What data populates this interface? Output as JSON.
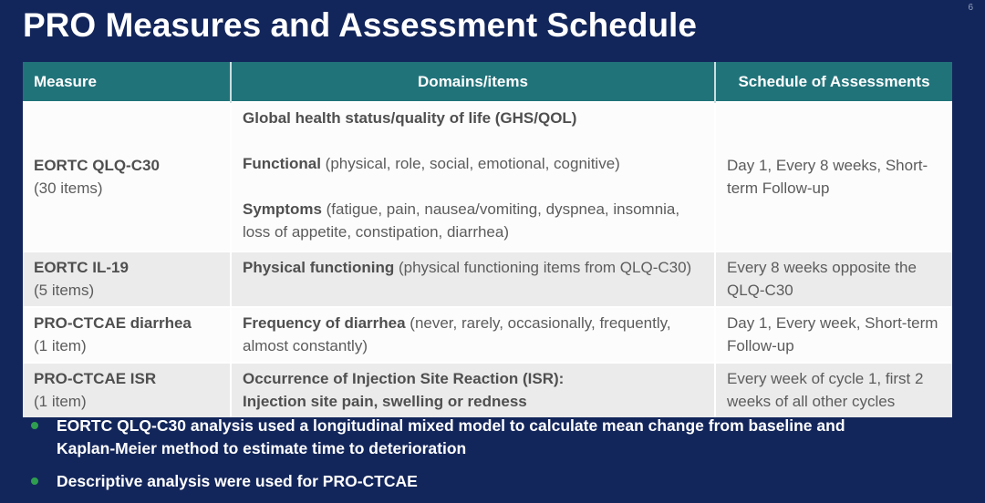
{
  "page_number": "6",
  "title": "PRO Measures and Assessment Schedule",
  "colors": {
    "background_navy": "#13265B",
    "header_teal": "#21737A",
    "row_white": "#FCFCFC",
    "row_gray": "#EBEBEB",
    "body_text_gray": "#5C5C5C",
    "bullet_green": "#2F9E4F",
    "title_white": "#FFFFFF"
  },
  "table": {
    "headers": {
      "measure": "Measure",
      "domains": "Domains/items",
      "schedule": "Schedule of Assessments"
    },
    "rows": [
      {
        "name": "EORTC QLQ-C30",
        "items": "(30 items)",
        "domains": [
          {
            "lead": "Global health status/quality of life (GHS/QOL)",
            "rest": ""
          },
          {
            "lead": "Functional",
            "rest": " (physical, role, social, emotional, cognitive)"
          },
          {
            "lead": "Symptoms",
            "rest": " (fatigue, pain, nausea/vomiting, dyspnea, insomnia, loss of appetite, constipation, diarrhea)"
          }
        ],
        "schedule": "Day 1, Every 8 weeks, Short-term Follow-up"
      },
      {
        "name": "EORTC IL-19",
        "items": "(5 items)",
        "domains": [
          {
            "lead": "Physical functioning",
            "rest": " (physical functioning items from QLQ-C30)"
          }
        ],
        "schedule": "Every 8 weeks opposite the QLQ-C30"
      },
      {
        "name": "PRO-CTCAE diarrhea",
        "items": "(1 item)",
        "domains": [
          {
            "lead": "Frequency of diarrhea",
            "rest": " (never, rarely, occasionally, frequently, almost constantly)"
          }
        ],
        "schedule": "Day 1, Every week, Short-term Follow-up"
      },
      {
        "name": "PRO-CTCAE ISR",
        "items": "(1 item)",
        "domains": [
          {
            "lead": "Occurrence of Injection Site Reaction (ISR):",
            "rest": ""
          },
          {
            "lead": "Injection site pain, swelling or redness",
            "rest": ""
          }
        ],
        "schedule": "Every week of cycle 1, first 2 weeks of all other cycles"
      }
    ]
  },
  "bullets": [
    "EORTC QLQ-C30 analysis used a longitudinal mixed model to calculate mean change from baseline and Kaplan-Meier method to estimate time to deterioration",
    "Descriptive analysis were used for PRO-CTCAE"
  ]
}
